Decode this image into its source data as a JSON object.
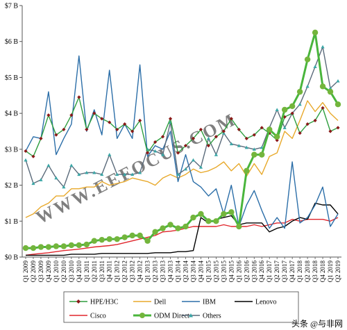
{
  "chart_data": {
    "type": "line",
    "title": "",
    "xlabel": "",
    "ylabel": "",
    "ylim": [
      0,
      7
    ],
    "y_tick_values": [
      0,
      1,
      2,
      3,
      4,
      5,
      6,
      7
    ],
    "y_tick_labels": [
      "$0 B",
      "$1 B",
      "$2 B",
      "$3 B",
      "$4 B",
      "$5 B",
      "$6 B",
      "$7 B"
    ],
    "grid": false,
    "legend_position": "bottom",
    "x": [
      "Q1 2009",
      "Q2 2009",
      "Q3 2009",
      "Q4 2009",
      "Q1 2010",
      "Q2 2010",
      "Q3 2010",
      "Q4 2010",
      "Q1 2011",
      "Q2 2011",
      "Q3 2011",
      "Q4 2011",
      "Q1 2012",
      "Q2 2012",
      "Q3 2012",
      "Q4 2012",
      "Q1 2013",
      "Q2 2013",
      "Q3 2013",
      "Q4 2013",
      "Q1 2014",
      "Q2 2014",
      "Q3 2014",
      "Q4 2014",
      "Q1 2015",
      "Q2 2015",
      "Q3 2015",
      "Q4 2015",
      "Q1 2016",
      "Q2 2016",
      "Q3 2016",
      "Q4 2016",
      "Q1 2017",
      "Q2 2017",
      "Q3 2017",
      "Q4 2017",
      "Q1 2018",
      "Q2 2018",
      "Q3 2018",
      "Q4 2018",
      "Q1 2019",
      "Q2 2019"
    ],
    "series": [
      {
        "name": "HPE/H3C",
        "color": "#2e9e3e",
        "marker": "diamond",
        "marker_color": "#8b1a1a",
        "values": [
          2.95,
          2.8,
          3.3,
          3.95,
          3.4,
          3.55,
          3.95,
          4.45,
          3.55,
          4.0,
          3.85,
          3.75,
          3.55,
          3.7,
          3.5,
          3.8,
          2.9,
          3.2,
          3.35,
          3.85,
          2.9,
          3.1,
          3.3,
          3.55,
          3.1,
          3.35,
          3.5,
          3.85,
          3.55,
          3.3,
          3.4,
          3.6,
          3.45,
          3.25,
          3.9,
          4.0,
          3.45,
          3.7,
          3.8,
          4.15,
          3.5,
          3.6
        ]
      },
      {
        "name": "Dell",
        "color": "#e8a92b",
        "values": [
          1.1,
          1.2,
          1.4,
          1.5,
          1.7,
          1.7,
          1.9,
          1.9,
          1.95,
          1.95,
          2.1,
          2.0,
          2.05,
          2.1,
          2.2,
          2.15,
          2.1,
          2.0,
          2.2,
          2.3,
          2.2,
          2.3,
          2.45,
          2.35,
          2.4,
          2.5,
          2.65,
          2.4,
          2.6,
          2.25,
          2.6,
          2.3,
          2.8,
          2.9,
          3.5,
          3.3,
          3.8,
          4.35,
          4.05,
          4.3,
          4.0,
          3.8
        ]
      },
      {
        "name": "IBM",
        "color": "#2b6ea8",
        "values": [
          2.95,
          3.35,
          3.3,
          4.6,
          2.85,
          3.3,
          3.7,
          5.6,
          3.5,
          4.1,
          3.4,
          5.2,
          3.3,
          3.7,
          3.3,
          5.35,
          2.8,
          3.1,
          3.0,
          3.5,
          2.1,
          2.85,
          2.1,
          1.95,
          1.7,
          1.9,
          1.2,
          2.0,
          0.85,
          1.45,
          1.85,
          1.3,
          0.8,
          1.1,
          0.8,
          2.65,
          0.95,
          1.1,
          1.45,
          1.95,
          0.85,
          1.2
        ]
      },
      {
        "name": "Lenovo",
        "color": "#000000",
        "values": [
          0.05,
          0.05,
          0.05,
          0.05,
          0.05,
          0.05,
          0.08,
          0.08,
          0.08,
          0.08,
          0.1,
          0.1,
          0.1,
          0.1,
          0.1,
          0.1,
          0.1,
          0.12,
          0.12,
          0.12,
          0.15,
          0.15,
          0.18,
          1.1,
          0.95,
          1.05,
          1.1,
          1.15,
          0.9,
          0.95,
          0.95,
          0.95,
          0.7,
          0.8,
          0.85,
          1.0,
          1.1,
          1.05,
          1.5,
          1.45,
          1.45,
          1.2
        ]
      },
      {
        "name": "Cisco",
        "color": "#e0252b",
        "values": [
          0.05,
          0.08,
          0.1,
          0.12,
          0.15,
          0.18,
          0.2,
          0.22,
          0.25,
          0.28,
          0.3,
          0.32,
          0.35,
          0.4,
          0.45,
          0.5,
          0.55,
          0.6,
          0.7,
          0.72,
          0.75,
          0.8,
          0.85,
          0.85,
          0.85,
          0.85,
          0.9,
          0.85,
          0.85,
          0.85,
          0.9,
          0.85,
          0.9,
          0.95,
          0.95,
          1.05,
          1.0,
          1.05,
          1.05,
          1.05,
          1.0,
          1.1
        ]
      },
      {
        "name": "ODM Direct",
        "color": "#49b53c",
        "marker": "circle",
        "marker_color": "#73b53c",
        "values": [
          0.25,
          0.25,
          0.28,
          0.28,
          0.3,
          0.3,
          0.33,
          0.33,
          0.35,
          0.45,
          0.48,
          0.5,
          0.5,
          0.55,
          0.6,
          0.6,
          0.45,
          0.7,
          0.8,
          0.9,
          0.8,
          0.85,
          1.1,
          1.2,
          1.0,
          1.0,
          1.2,
          1.25,
          0.85,
          2.4,
          2.85,
          2.85,
          3.55,
          3.35,
          4.1,
          4.2,
          4.6,
          5.5,
          6.25,
          4.75,
          4.6,
          4.25
        ]
      },
      {
        "name": "Others",
        "color": "#5a6a7a",
        "marker": "triangle",
        "marker_color": "#3aa6a6",
        "values": [
          2.7,
          2.05,
          2.15,
          2.55,
          2.2,
          1.95,
          2.55,
          2.3,
          2.35,
          2.35,
          2.3,
          2.85,
          2.3,
          2.3,
          2.3,
          2.35,
          3.0,
          2.95,
          2.85,
          3.75,
          2.3,
          2.45,
          2.7,
          2.5,
          3.3,
          2.85,
          3.45,
          3.15,
          3.1,
          3.05,
          3.0,
          3.05,
          3.6,
          4.1,
          3.6,
          4.0,
          4.25,
          4.75,
          5.3,
          5.85,
          4.7,
          4.9
        ]
      }
    ],
    "annotations": [
      "WWW.EEFOCUS.COM"
    ],
    "watermark_text": "头条 @与非网"
  }
}
